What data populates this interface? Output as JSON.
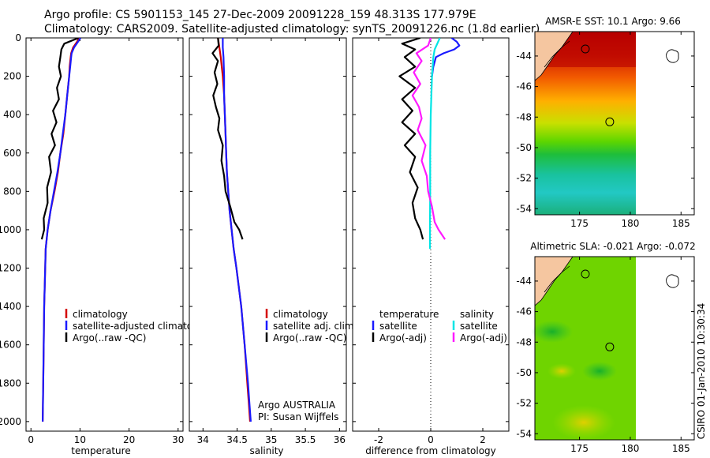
{
  "header": {
    "line1": "Argo profile: CS 5901153_145 27-Dec-2009 20091228_159 48.313S 177.979E",
    "line2": "Climatology: CARS2009. Satellite-adjusted climatology: synTS_20091226.nc (1.8d earlier)"
  },
  "colors": {
    "climatology": "#d40000",
    "satellite": "#1a1aff",
    "argo": "#000000",
    "satellite_salinity": "#00e5e5",
    "argo_salinity": "#ff1aff",
    "land": "#f5c6a0"
  },
  "depth_axis": {
    "ticks": [
      0,
      200,
      400,
      600,
      800,
      1000,
      1200,
      1400,
      1600,
      1800,
      2000
    ],
    "ylim": [
      0,
      2050
    ]
  },
  "chart_data": [
    {
      "type": "line",
      "name": "temperature-profile",
      "xlabel": "temperature",
      "xlim": [
        -1,
        31
      ],
      "xticks": [
        0,
        10,
        20,
        30
      ],
      "y": [
        0,
        20,
        50,
        80,
        100,
        150,
        200,
        300,
        400,
        500,
        600,
        700,
        800,
        900,
        1000,
        1100,
        1200,
        1400,
        1600,
        1800,
        2000
      ],
      "series": [
        {
          "name": "climatology",
          "values": [
            9.8,
            9.4,
            8.6,
            8.2,
            8.1,
            7.9,
            7.8,
            7.4,
            7.0,
            6.6,
            6.0,
            5.5,
            4.8,
            4.0,
            3.4,
            3.0,
            2.9,
            2.7,
            2.6,
            2.5,
            2.4
          ]
        },
        {
          "name": "satellite-adjusted climatology",
          "values": [
            10.1,
            9.6,
            8.8,
            8.3,
            8.2,
            8.0,
            7.8,
            7.4,
            7.0,
            6.5,
            6.0,
            5.4,
            4.7,
            4.0,
            3.4,
            3.0,
            2.9,
            2.7,
            2.6,
            2.5,
            2.4
          ]
        },
        {
          "name": "Argo(..raw -QC)",
          "y": [
            0,
            30,
            60,
            100,
            150,
            200,
            260,
            320,
            380,
            440,
            500,
            560,
            620,
            700,
            780,
            860,
            940,
            1000,
            1050
          ],
          "values": [
            9.7,
            6.8,
            6.2,
            6.0,
            5.7,
            6.1,
            5.3,
            5.7,
            4.5,
            5.2,
            4.2,
            4.9,
            3.7,
            4.1,
            3.3,
            3.4,
            2.6,
            2.7,
            2.2
          ]
        }
      ],
      "legend": [
        "climatology",
        "satellite-adjusted climatology",
        "Argo(..raw -QC)"
      ]
    },
    {
      "type": "line",
      "name": "salinity-profile",
      "xlabel": "salinity",
      "xlim": [
        33.8,
        36.1
      ],
      "xticks": [
        "34",
        "34.5",
        "35",
        "35.5",
        "36"
      ],
      "y": [
        0,
        50,
        100,
        200,
        300,
        400,
        500,
        600,
        700,
        800,
        900,
        1000,
        1100,
        1200,
        1400,
        1600,
        1800,
        1900,
        2000
      ],
      "series": [
        {
          "name": "climatology",
          "values": [
            34.22,
            34.24,
            34.26,
            34.29,
            34.31,
            34.32,
            34.33,
            34.34,
            34.35,
            34.37,
            34.39,
            34.42,
            34.45,
            34.49,
            34.56,
            34.61,
            34.65,
            34.67,
            34.69
          ]
        },
        {
          "name": "satellite adj. clim.",
          "values": [
            34.29,
            34.29,
            34.3,
            34.31,
            34.31,
            34.32,
            34.33,
            34.34,
            34.35,
            34.37,
            34.39,
            34.42,
            34.45,
            34.49,
            34.56,
            34.61,
            34.66,
            34.68,
            34.7
          ]
        },
        {
          "name": "Argo(..raw -QC)",
          "y": [
            0,
            40,
            80,
            120,
            180,
            240,
            300,
            360,
            420,
            480,
            560,
            640,
            720,
            800,
            880,
            960,
            1000,
            1050
          ],
          "values": [
            34.22,
            34.23,
            34.14,
            34.22,
            34.17,
            34.21,
            34.15,
            34.19,
            34.24,
            34.22,
            34.29,
            34.27,
            34.31,
            34.33,
            34.4,
            34.46,
            34.53,
            34.58
          ]
        }
      ],
      "legend": [
        "climatology",
        "satellite adj. clim.",
        "Argo(..raw -QC)"
      ],
      "annotation": [
        "Argo AUSTRALIA",
        "PI: Susan Wijffels"
      ]
    },
    {
      "type": "line",
      "name": "difference-profile",
      "xlabel": "difference from climatology",
      "xlim": [
        -3,
        3
      ],
      "xticks": [
        "-2",
        "0",
        "2"
      ],
      "series": [
        {
          "name": "temperature satellite",
          "y": [
            0,
            20,
            40,
            60,
            80,
            100,
            150,
            200
          ],
          "values": [
            0.8,
            1.0,
            1.1,
            0.9,
            0.5,
            0.2,
            0.1,
            0.05
          ]
        },
        {
          "name": "temperature Argo(-adj)",
          "y": [
            0,
            30,
            60,
            100,
            150,
            200,
            260,
            320,
            380,
            440,
            500,
            560,
            620,
            700,
            780,
            860,
            940,
            1000,
            1050
          ],
          "values": [
            -0.4,
            -1.1,
            -0.6,
            -1.0,
            -0.6,
            -1.2,
            -0.6,
            -1.1,
            -0.7,
            -1.1,
            -0.6,
            -1.0,
            -0.6,
            -0.8,
            -0.5,
            -0.7,
            -0.6,
            -0.4,
            -0.3
          ]
        },
        {
          "name": "salinity satellite",
          "y": [
            0,
            30,
            60,
            100,
            200,
            400,
            600,
            800,
            1000,
            1100
          ],
          "values": [
            0.35,
            0.25,
            0.15,
            0.1,
            0.05,
            0.0,
            -0.02,
            -0.02,
            -0.03,
            -0.03
          ]
        },
        {
          "name": "salinity Argo(-adj)",
          "y": [
            0,
            40,
            80,
            120,
            180,
            240,
            300,
            360,
            420,
            480,
            560,
            640,
            720,
            800,
            880,
            960,
            1000,
            1050
          ],
          "values": [
            0.0,
            -0.1,
            -0.55,
            -0.35,
            -0.65,
            -0.4,
            -0.7,
            -0.45,
            -0.35,
            -0.5,
            -0.2,
            -0.35,
            -0.15,
            -0.1,
            0.05,
            0.15,
            0.3,
            0.55
          ]
        }
      ],
      "legend": {
        "temperature_heading": "temperature",
        "salinity_heading": "salinity",
        "satellite": "satellite",
        "argo": "Argo(-adj)"
      }
    }
  ],
  "maps": [
    {
      "title": "AMSR-E SST: 10.1  Argo: 9.66",
      "name": "sst-map"
    },
    {
      "title": "Altimetric SLA: -0.021  Argo: -0.072",
      "name": "sla-map"
    }
  ],
  "map_axes": {
    "lat_ticks": [
      "-44",
      "-46",
      "-48",
      "-50",
      "-52",
      "-54"
    ],
    "lon_ticks": [
      "175",
      "180",
      "185"
    ]
  },
  "float_position": {
    "lat": -48.313,
    "lon": 177.979
  },
  "footer": "CSIRO 01-Jan-2010 10:30:34"
}
